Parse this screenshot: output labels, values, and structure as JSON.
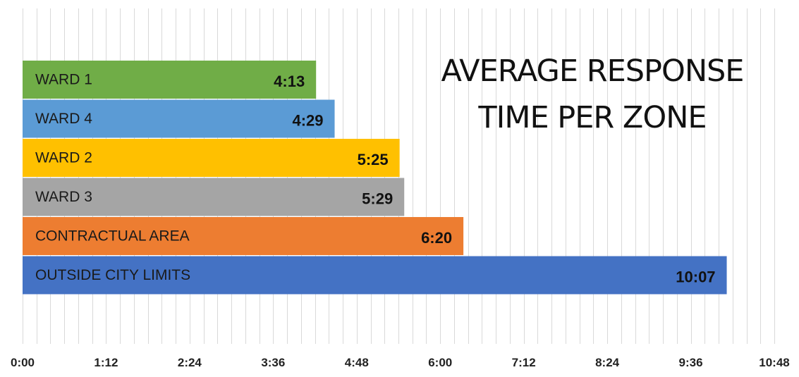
{
  "chart_data": {
    "type": "bar",
    "orientation": "horizontal",
    "title_lines": [
      "AVERAGE RESPONSE",
      "TIME PER ZONE"
    ],
    "categories": [
      "WARD 1",
      "WARD 4",
      "WARD 2",
      "WARD 3",
      "CONTRACTUAL AREA",
      "OUTSIDE CITY LIMITS"
    ],
    "values_seconds": [
      253,
      269,
      325,
      329,
      380,
      607
    ],
    "value_labels": [
      "4:13",
      "4:29",
      "5:25",
      "5:29",
      "6:20",
      "10:07"
    ],
    "bar_colors": [
      "#70ad47",
      "#5b9bd5",
      "#ffc000",
      "#a5a5a5",
      "#ed7d31",
      "#4472c4"
    ],
    "x_ticks_seconds": [
      0,
      72,
      144,
      216,
      288,
      360,
      432,
      504,
      576,
      648
    ],
    "x_tick_labels": [
      "0:00",
      "1:12",
      "2:24",
      "3:36",
      "4:48",
      "6:00",
      "7:12",
      "8:24",
      "9:36",
      "10:48"
    ],
    "xlim_seconds": [
      0,
      648
    ],
    "grid": true,
    "legend": "none"
  }
}
